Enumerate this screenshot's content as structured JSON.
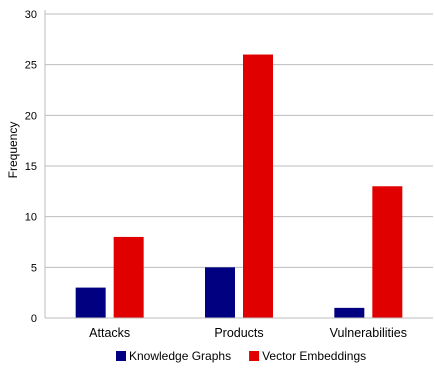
{
  "chart_data": {
    "type": "bar",
    "title": "",
    "xlabel": "",
    "ylabel": "Frequency",
    "ylim": [
      0,
      30
    ],
    "yticks": [
      0,
      5,
      10,
      15,
      20,
      25,
      30
    ],
    "grid": true,
    "legend_position": "bottom",
    "categories": [
      "Attacks",
      "Products",
      "Vulnerabilities"
    ],
    "series": [
      {
        "name": "Knowledge Graphs",
        "color": "#000080",
        "values": [
          3,
          5,
          1
        ]
      },
      {
        "name": "Vector Embeddings",
        "color": "#E00000",
        "values": [
          8,
          26,
          13
        ]
      }
    ]
  }
}
